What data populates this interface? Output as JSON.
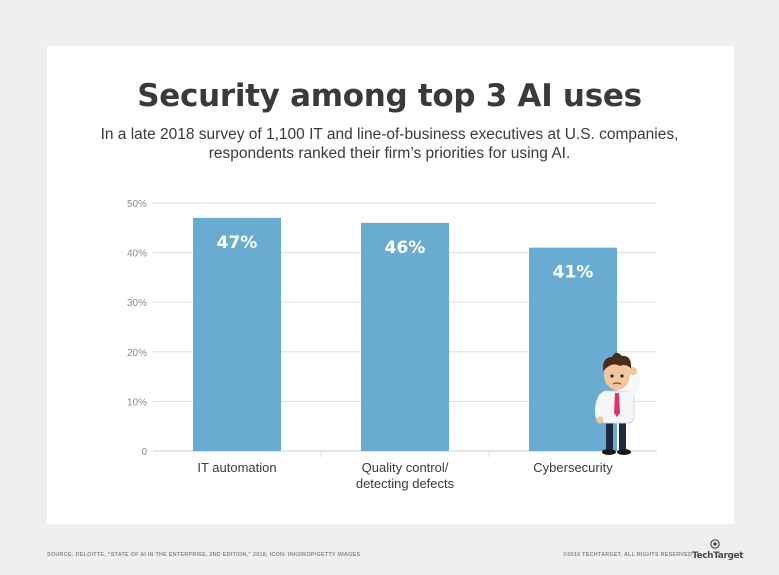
{
  "chart_data": {
    "type": "bar",
    "title": "Security among top 3 AI uses",
    "subtitle_lines": [
      "In a late 2018 survey of 1,100 IT and line-of-business executives at U.S. companies,",
      "respondents ranked their firm’s priorities for using AI."
    ],
    "categories": [
      [
        "IT automation"
      ],
      [
        "Quality control/",
        "detecting defects"
      ],
      [
        "Cybersecurity"
      ]
    ],
    "values": [
      47,
      46,
      41
    ],
    "value_labels": [
      "47%",
      "46%",
      "41%"
    ],
    "ylim": [
      0,
      50
    ],
    "y_ticks": [
      "0",
      "10%",
      "20%",
      "30%",
      "40%",
      "50%"
    ],
    "grid": true,
    "colors": {
      "bar": "#6aabd2",
      "grid": "#dedede",
      "text": "#3a3a3a",
      "tick": "#8a8a8a"
    }
  },
  "footer": {
    "source": "SOURCE: DELOITTE, “STATE OF AI IN THE ENTERPRISE, 2ND EDITION,” 2018; ICON: INKDROP/GETTY IMAGES",
    "copyright": "©2019 TECHTARGET. ALL RIGHTS RESERVED",
    "logo": "TechTarget"
  },
  "icons": {
    "illustration": "confused-businessman-icon",
    "logo_mark": "eye-icon"
  }
}
